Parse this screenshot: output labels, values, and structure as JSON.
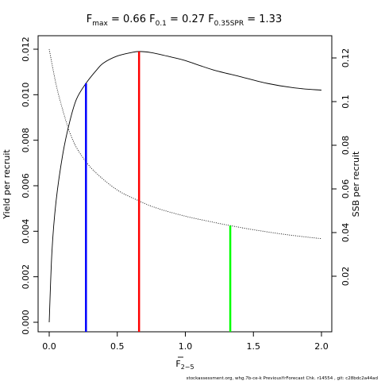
{
  "chart_data": {
    "type": "line",
    "title": {
      "fmax": {
        "name": "F",
        "sub": "max",
        "value": "0.66"
      },
      "f01": {
        "name": "F",
        "sub": "0.1",
        "value": "0.27"
      },
      "fspr": {
        "name": "F",
        "sub": "0.35SPR",
        "value": "1.33"
      }
    },
    "xlabel": {
      "main": "F",
      "sub": "2−5"
    },
    "ylabel_left": "Yield per recruit",
    "ylabel_right": "SSB per recruit",
    "xlim": [
      0,
      2.0
    ],
    "ylim_left": [
      0,
      0.012
    ],
    "ylim_right": [
      0,
      0.126
    ],
    "xticks": [
      "0.0",
      "0.5",
      "1.0",
      "1.5",
      "2.0"
    ],
    "yticks_left": [
      "0.000",
      "0.002",
      "0.004",
      "0.006",
      "0.008",
      "0.010",
      "0.012"
    ],
    "yticks_right": [
      "0.02",
      "0.04",
      "0.06",
      "0.08",
      "0.1",
      "0.12"
    ],
    "series": [
      {
        "name": "Yield per recruit",
        "axis": "left",
        "style": "solid",
        "x": [
          0.0,
          0.02,
          0.05,
          0.1,
          0.15,
          0.2,
          0.27,
          0.35,
          0.4,
          0.5,
          0.6,
          0.66,
          0.75,
          0.9,
          1.0,
          1.2,
          1.4,
          1.6,
          1.8,
          2.0
        ],
        "y": [
          0.0,
          0.0031,
          0.0053,
          0.0074,
          0.0088,
          0.0098,
          0.0105,
          0.0111,
          0.0114,
          0.0117,
          0.01185,
          0.0119,
          0.01185,
          0.01165,
          0.0115,
          0.0111,
          0.0108,
          0.0105,
          0.0103,
          0.0102
        ]
      },
      {
        "name": "SSB per recruit",
        "axis": "right",
        "style": "dotted",
        "x": [
          0.0,
          0.05,
          0.1,
          0.15,
          0.2,
          0.27,
          0.35,
          0.5,
          0.66,
          0.8,
          1.0,
          1.2,
          1.33,
          1.5,
          1.75,
          2.0
        ],
        "y": [
          0.124,
          0.108,
          0.096,
          0.086,
          0.079,
          0.0725,
          0.067,
          0.0595,
          0.0545,
          0.051,
          0.0475,
          0.0448,
          0.0432,
          0.0413,
          0.039,
          0.0372
        ]
      }
    ],
    "reference_lines": [
      {
        "x": 0.27,
        "y_left": 0.0105,
        "color": "#0000ff"
      },
      {
        "x": 0.66,
        "y_left": 0.0119,
        "color": "#ff0000"
      },
      {
        "x": 1.33,
        "y_right": 0.0432,
        "color": "#00ff00"
      }
    ],
    "grid": false,
    "legend": "none"
  },
  "footer": "stockassessment.org, whg.7b-ce-k  PreviousYrForecast  Chk. r14554 , git: c28bdc2a44ad"
}
